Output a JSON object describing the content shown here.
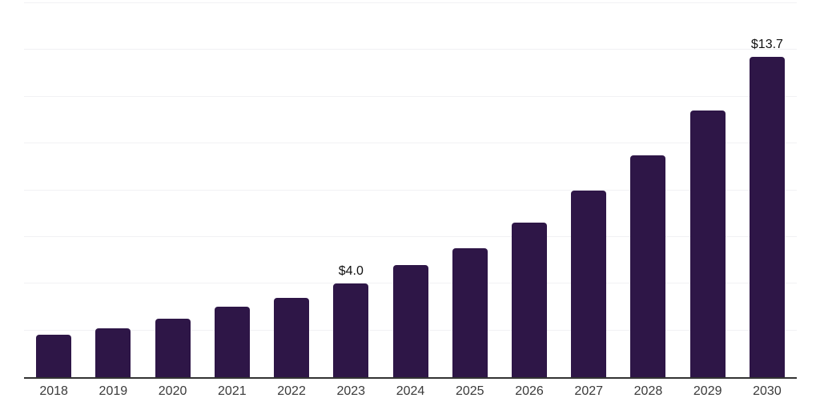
{
  "chart_data": {
    "type": "bar",
    "title": "",
    "xlabel": "",
    "ylabel": "",
    "categories": [
      "2018",
      "2019",
      "2020",
      "2021",
      "2022",
      "2023",
      "2024",
      "2025",
      "2026",
      "2027",
      "2028",
      "2029",
      "2030"
    ],
    "values": [
      1.8,
      2.1,
      2.5,
      3.0,
      3.4,
      4.0,
      4.8,
      5.5,
      6.6,
      8.0,
      9.5,
      11.4,
      13.7
    ],
    "data_labels": [
      "",
      "",
      "",
      "",
      "",
      "$4.0",
      "",
      "",
      "",
      "",
      "",
      "",
      "$13.7"
    ],
    "ylim": [
      0,
      16
    ],
    "grid": true,
    "gridline_values": [
      2,
      4,
      6,
      8,
      10,
      12,
      14,
      16
    ],
    "y_axis_labels_visible": false,
    "legend": "none",
    "colors": {
      "bar": "#2e1647",
      "axis_line": "#333333",
      "gridline": "#f1f1f4",
      "tick_label": "#3a3a3a",
      "value_label": "#111111",
      "background": "#ffffff"
    }
  }
}
